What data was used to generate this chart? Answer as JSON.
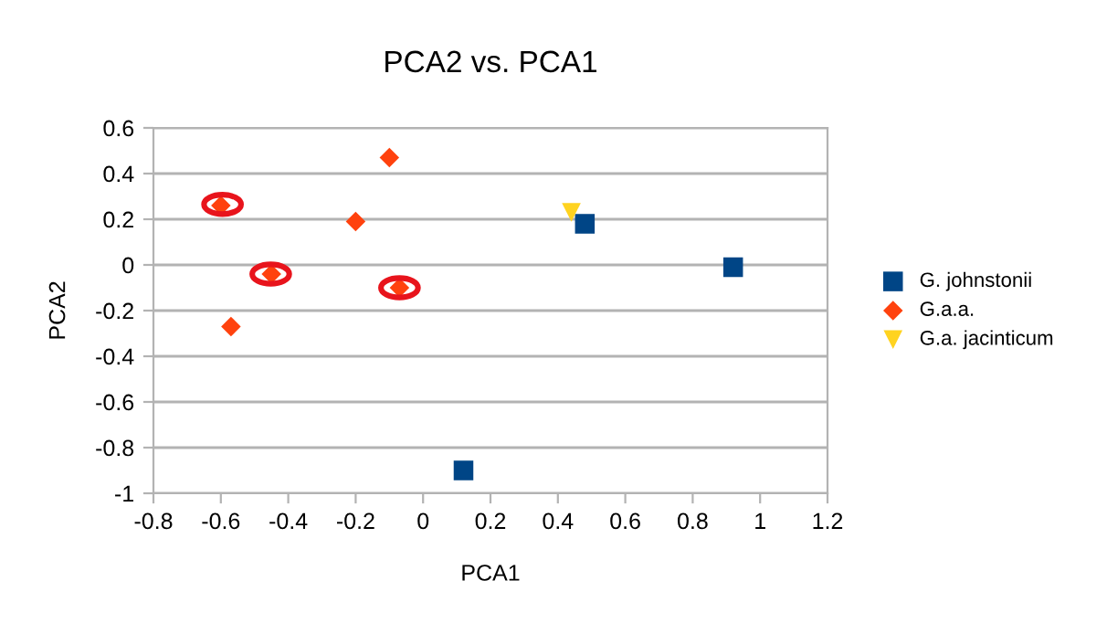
{
  "chart_data": {
    "type": "scatter",
    "title": "PCA2 vs. PCA1",
    "xlabel": "PCA1",
    "ylabel": "PCA2",
    "xlim": [
      -0.8,
      1.2
    ],
    "xticks": [
      -0.8,
      -0.6,
      -0.4,
      -0.2,
      0,
      0.2,
      0.4,
      0.6,
      0.8,
      1,
      1.2
    ],
    "ylim": [
      -1,
      0.6
    ],
    "yticks": [
      -1,
      -0.8,
      -0.6,
      -0.4,
      -0.2,
      0,
      0.2,
      0.4,
      0.6
    ],
    "grid": "y",
    "legend": "right",
    "series": [
      {
        "name": "G. johnstonii",
        "color": "#004586",
        "marker": "square",
        "x": [
          0.48,
          0.92,
          0.12
        ],
        "values": [
          0.18,
          -0.01,
          -0.9
        ]
      },
      {
        "name": "G.a.a.",
        "color": "#ff420e",
        "marker": "diamond",
        "x": [
          -0.6,
          -0.45,
          -0.57,
          -0.2,
          -0.1,
          -0.07
        ],
        "values": [
          0.26,
          -0.04,
          -0.27,
          0.19,
          0.47,
          -0.1
        ]
      },
      {
        "name": "G.a. jacinticum",
        "color": "#ffd320",
        "marker": "triangle",
        "x": [
          0.44
        ],
        "values": [
          0.23
        ]
      }
    ]
  }
}
